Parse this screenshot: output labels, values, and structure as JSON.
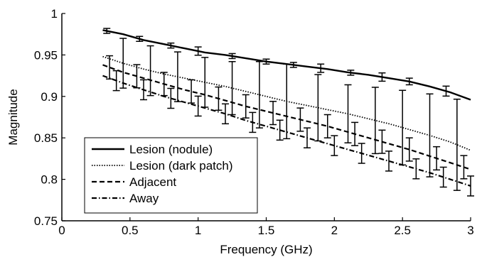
{
  "chart_data": {
    "type": "line",
    "title": "",
    "xlabel": "Frequency (GHz)",
    "ylabel": "Magnitude",
    "xlim": [
      0,
      3
    ],
    "ylim": [
      0.75,
      1
    ],
    "xticks": [
      0,
      0.5,
      1,
      1.5,
      2,
      2.5,
      3
    ],
    "xtick_labels": [
      "0",
      "0.5",
      "1",
      "1.5",
      "2",
      "2.5",
      "3"
    ],
    "yticks": [
      0.75,
      0.8,
      0.85,
      0.9,
      0.95,
      1
    ],
    "ytick_labels": [
      "0.75",
      "0.8",
      "0.85",
      "0.9",
      "0.95",
      "1"
    ],
    "grid": false,
    "legend_position": "bottom-left",
    "series": [
      {
        "name": "Lesion (nodule)",
        "style": "solid",
        "x": [
          0.3,
          0.45,
          0.6,
          0.75,
          0.9,
          1.05,
          1.2,
          1.35,
          1.5,
          1.65,
          1.8,
          1.95,
          2.1,
          2.25,
          2.4,
          2.55,
          2.7,
          2.85,
          3.0
        ],
        "y": [
          0.98,
          0.975,
          0.968,
          0.963,
          0.958,
          0.953,
          0.95,
          0.946,
          0.942,
          0.939,
          0.936,
          0.933,
          0.929,
          0.926,
          0.922,
          0.918,
          0.912,
          0.905,
          0.896
        ]
      },
      {
        "name": "Lesion (dark patch)",
        "style": "dotted",
        "x": [
          0.3,
          0.45,
          0.6,
          0.75,
          0.9,
          1.05,
          1.2,
          1.35,
          1.5,
          1.65,
          1.8,
          1.95,
          2.1,
          2.25,
          2.4,
          2.55,
          2.7,
          2.85,
          3.0
        ],
        "y": [
          0.948,
          0.94,
          0.933,
          0.927,
          0.922,
          0.917,
          0.912,
          0.906,
          0.9,
          0.894,
          0.889,
          0.884,
          0.879,
          0.873,
          0.867,
          0.86,
          0.853,
          0.845,
          0.835
        ]
      },
      {
        "name": "Adjacent",
        "style": "dashed",
        "x": [
          0.3,
          0.45,
          0.6,
          0.75,
          0.9,
          1.05,
          1.2,
          1.35,
          1.5,
          1.65,
          1.8,
          1.95,
          2.1,
          2.25,
          2.4,
          2.55,
          2.7,
          2.85,
          3.0
        ],
        "y": [
          0.938,
          0.929,
          0.922,
          0.915,
          0.908,
          0.902,
          0.895,
          0.888,
          0.882,
          0.876,
          0.87,
          0.864,
          0.857,
          0.85,
          0.843,
          0.836,
          0.828,
          0.82,
          0.812
        ]
      },
      {
        "name": "Away",
        "style": "dashdot",
        "x": [
          0.3,
          0.45,
          0.6,
          0.75,
          0.9,
          1.05,
          1.2,
          1.35,
          1.5,
          1.65,
          1.8,
          1.95,
          2.1,
          2.25,
          2.4,
          2.55,
          2.7,
          2.85,
          3.0
        ],
        "y": [
          0.925,
          0.916,
          0.908,
          0.9,
          0.893,
          0.886,
          0.879,
          0.871,
          0.864,
          0.857,
          0.85,
          0.843,
          0.836,
          0.829,
          0.822,
          0.815,
          0.808,
          0.8,
          0.792
        ]
      }
    ],
    "error_bars": [
      {
        "series": "Lesion (nodule)",
        "x": [
          0.33,
          0.57,
          0.8,
          1.0,
          1.25,
          1.5,
          1.7,
          1.9,
          2.12,
          2.35,
          2.55,
          2.82
        ],
        "err": [
          0.003,
          0.003,
          0.003,
          0.005,
          0.003,
          0.003,
          0.003,
          0.005,
          0.003,
          0.005,
          0.004,
          0.006
        ]
      },
      {
        "series": "Lesion (dark patch)",
        "x": [
          0.45,
          0.65,
          0.85,
          1.05,
          1.25,
          1.45,
          1.65,
          1.88,
          2.1,
          2.3,
          2.5,
          2.7,
          2.9
        ],
        "err": [
          0.03,
          0.03,
          0.03,
          0.03,
          0.032,
          0.04,
          0.045,
          0.04,
          0.035,
          0.04,
          0.045,
          0.05,
          0.055
        ]
      },
      {
        "series": "Adjacent",
        "x": [
          0.35,
          0.55,
          0.75,
          0.95,
          1.15,
          1.35,
          1.55,
          1.75,
          1.95,
          2.15,
          2.35,
          2.55,
          2.75,
          2.95
        ],
        "err": [
          0.014,
          0.014,
          0.014,
          0.014,
          0.014,
          0.014,
          0.014,
          0.014,
          0.014,
          0.014,
          0.014,
          0.014,
          0.014,
          0.014
        ]
      },
      {
        "series": "Away",
        "x": [
          0.4,
          0.6,
          0.8,
          1.0,
          1.2,
          1.4,
          1.6,
          1.8,
          2.0,
          2.2,
          2.4,
          2.6,
          2.8,
          3.0
        ],
        "err": [
          0.012,
          0.012,
          0.012,
          0.012,
          0.012,
          0.012,
          0.012,
          0.012,
          0.012,
          0.012,
          0.012,
          0.012,
          0.012,
          0.012
        ]
      }
    ]
  }
}
